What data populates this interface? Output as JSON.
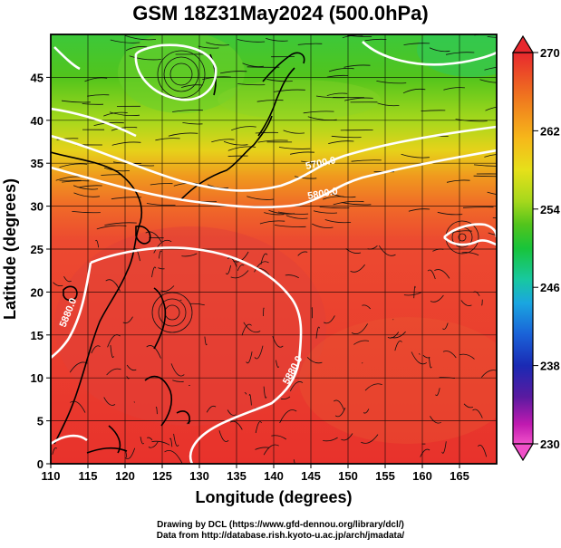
{
  "title": "GSM 18Z31May2024 (500.0hPa)",
  "x_axis": {
    "title": "Longitude (degrees)",
    "ticks": [
      "110",
      "115",
      "120",
      "125",
      "130",
      "135",
      "140",
      "145",
      "150",
      "155",
      "160",
      "165"
    ]
  },
  "y_axis": {
    "title": "Latitude  (degrees)",
    "ticks": [
      "0",
      "5",
      "10",
      "15",
      "20",
      "25",
      "30",
      "35",
      "40",
      "45"
    ]
  },
  "colorbar": {
    "ticks": [
      "270",
      "262",
      "254",
      "246",
      "238",
      "230"
    ],
    "colors": [
      "#e8282e",
      "#f07a1e",
      "#f6b81a",
      "#e6e01a",
      "#a6d81c",
      "#52c41c",
      "#18c43a",
      "#18c8a0",
      "#1aa6e0",
      "#1a62d8",
      "#1a2ab4",
      "#3a1a9a",
      "#8a1aa8",
      "#d21ab0",
      "#f050c8"
    ]
  },
  "contour_labels": [
    "5700.0",
    "5800.0",
    "5880.0",
    "5880.0",
    "5880.0"
  ],
  "footer": {
    "line1": "Drawing by DCL (https://www.gfd-dennou.org/library/dcl/)",
    "line2": "Data from http://database.rish.kyoto-u.ac.jp/arch/jmadata/"
  }
}
